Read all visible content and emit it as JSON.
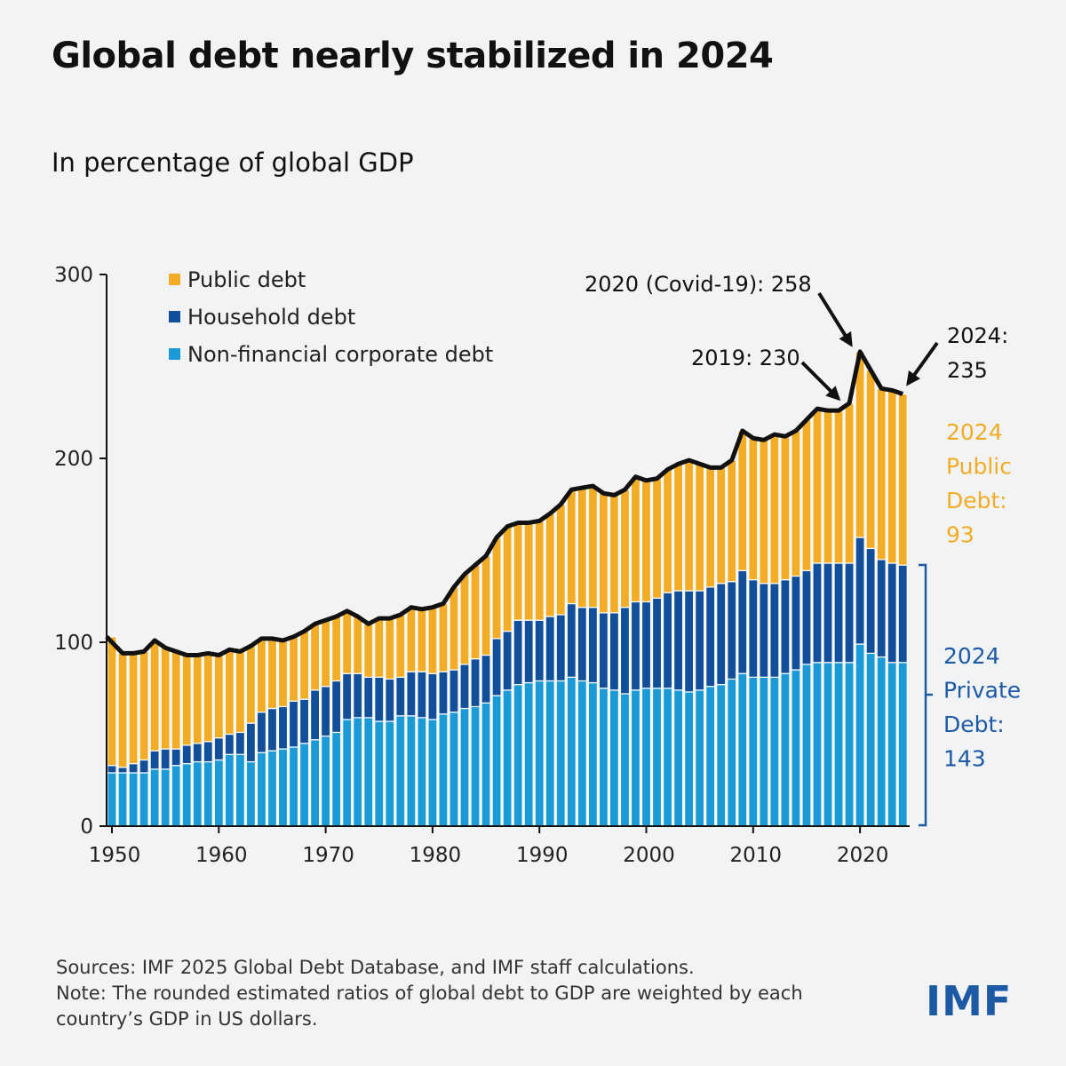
{
  "title": "Global debt nearly stabilized in 2024",
  "subtitle": "In percentage of global GDP",
  "notes": {
    "source": "Sources: IMF 2025 Global Debt Database, and IMF staff calculations.",
    "note_line1": "Note: The rounded estimated ratios of global debt to GDP are weighted by each",
    "note_line2": "country’s GDP in US dollars."
  },
  "logo": "IMF",
  "chart_data": {
    "type": "bar",
    "stacked": true,
    "title": "",
    "xlabel": "",
    "ylabel": "",
    "ylim": [
      0,
      300
    ],
    "yticks": [
      0,
      100,
      200,
      300
    ],
    "xticks": [
      1950,
      1960,
      1970,
      1980,
      1990,
      2000,
      2010,
      2020
    ],
    "grid": false,
    "legend_position": "top-left",
    "x_start": 1950,
    "x_end": 2024,
    "series": [
      {
        "name": "Non-financial corporate debt",
        "color": "#1a9bd7",
        "values": [
          29,
          29,
          29,
          29,
          31,
          31,
          33,
          34,
          35,
          35,
          36,
          39,
          39,
          35,
          40,
          41,
          42,
          43,
          45,
          47,
          49,
          51,
          58,
          59,
          59,
          57,
          57,
          60,
          60,
          59,
          58,
          61,
          62,
          64,
          65,
          67,
          71,
          74,
          77,
          78,
          79,
          79,
          79,
          81,
          79,
          78,
          75,
          74,
          72,
          74,
          75,
          75,
          75,
          74,
          73,
          74,
          76,
          77,
          80,
          83,
          81,
          81,
          81,
          83,
          85,
          88,
          89,
          89,
          89,
          89,
          99,
          94,
          92,
          89,
          89
        ]
      },
      {
        "name": "Household debt",
        "color": "#114f9a",
        "values": [
          4,
          3,
          5,
          7,
          10,
          11,
          9,
          10,
          10,
          11,
          12,
          11,
          12,
          21,
          22,
          23,
          23,
          25,
          24,
          27,
          27,
          28,
          25,
          24,
          22,
          24,
          23,
          21,
          24,
          25,
          25,
          23,
          23,
          24,
          26,
          26,
          31,
          32,
          35,
          34,
          33,
          35,
          36,
          40,
          40,
          41,
          41,
          42,
          47,
          48,
          47,
          49,
          52,
          54,
          55,
          54,
          54,
          55,
          53,
          56,
          53,
          51,
          51,
          51,
          51,
          51,
          54,
          54,
          54,
          54,
          58,
          57,
          53,
          54,
          53
        ]
      },
      {
        "name": "Public debt",
        "color": "#f2ac25",
        "values": [
          70,
          62,
          60,
          59,
          60,
          55,
          53,
          49,
          48,
          48,
          45,
          46,
          44,
          42,
          40,
          38,
          36,
          35,
          37,
          36,
          36,
          35,
          34,
          31,
          29,
          32,
          33,
          34,
          35,
          34,
          36,
          37,
          45,
          49,
          51,
          54,
          55,
          57,
          53,
          53,
          54,
          56,
          60,
          62,
          65,
          66,
          65,
          64,
          64,
          68,
          66,
          65,
          67,
          69,
          71,
          69,
          65,
          63,
          66,
          76,
          77,
          78,
          81,
          78,
          79,
          82,
          84,
          83,
          83,
          87,
          101,
          97,
          93,
          94,
          93
        ]
      }
    ],
    "total_line_color": "#111111",
    "annotations": [
      {
        "text": "2020 (Covid-19): 258",
        "year": 2020,
        "value": 258
      },
      {
        "text": "2019: 230",
        "year": 2019,
        "value": 230
      },
      {
        "text_line1": "2024:",
        "text_line2": "235",
        "year": 2024,
        "value": 235
      }
    ],
    "side_labels": {
      "public": {
        "lines": [
          "2024",
          "Public",
          "Debt:",
          "93"
        ],
        "color": "#f2ac25"
      },
      "private": {
        "lines": [
          "2024",
          "Private",
          "Debt:",
          "143"
        ],
        "color": "#1d5aa6"
      }
    }
  }
}
